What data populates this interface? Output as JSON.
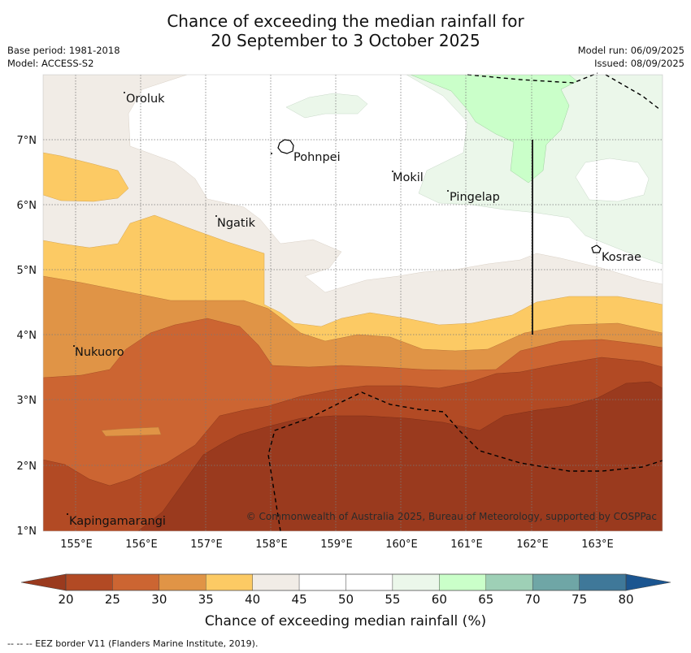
{
  "title_line1": "Chance of exceeding the median rainfall for",
  "title_line2": "20 September to 3 October 2025",
  "base_period": "Base period: 1981-2018",
  "model": "Model: ACCESS-S2",
  "model_run": "Model run: 06/09/2025",
  "issued": "Issued: 08/09/2025",
  "places": [
    "Oroluk",
    "Pohnpei",
    "Mokil",
    "Pingelap",
    "Ngatik",
    "Kosrae",
    "Nukuoro",
    "Kapingamarangi"
  ],
  "credit": "© Commonwealth of Australia 2025, Bureau of Meteorology, supported by COSPPac",
  "lon_ticks": [
    "155°E",
    "156°E",
    "157°E",
    "158°E",
    "159°E",
    "160°E",
    "161°E",
    "162°E",
    "163°E"
  ],
  "lat_ticks": [
    "1°N",
    "2°N",
    "3°N",
    "4°N",
    "5°N",
    "6°N",
    "7°N"
  ],
  "colorbar": {
    "title": "Chance of exceeding median rainfall (%)",
    "labels": [
      "20",
      "25",
      "30",
      "35",
      "40",
      "45",
      "50",
      "55",
      "60",
      "65",
      "70",
      "75",
      "80"
    ],
    "colors": [
      "#9a3a1e",
      "#b24a24",
      "#cc6532",
      "#e09446",
      "#fcca64",
      "#f1ece6",
      "#ffffff",
      "#ffffff",
      "#ebf7ea",
      "#caffc9",
      "#9ed0b6",
      "#6fa6a6",
      "#3f7899",
      "#1b5590"
    ]
  },
  "footnote": "--  --  -- EEZ border V11 (Flanders Marine Institute, 2019)."
}
